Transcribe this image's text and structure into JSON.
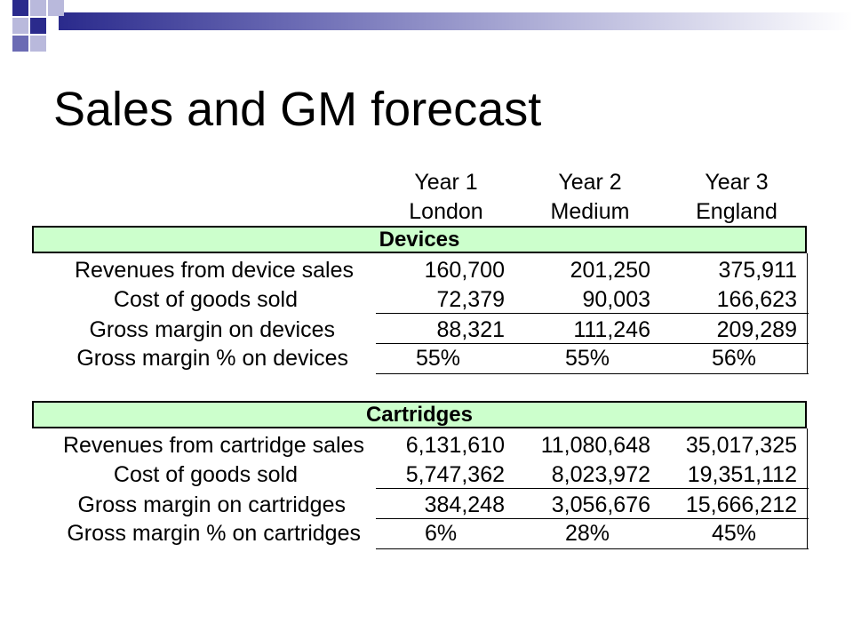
{
  "slide": {
    "title": "Sales and GM forecast"
  },
  "columns": [
    {
      "year": "Year 1",
      "scenario": "London"
    },
    {
      "year": "Year 2",
      "scenario": "Medium"
    },
    {
      "year": "Year 3",
      "scenario": "England"
    }
  ],
  "sections": [
    {
      "title": "Devices",
      "rows": [
        {
          "label": "Revenues from device sales",
          "values": [
            "160,700",
            "201,250",
            "375,911"
          ]
        },
        {
          "label": "Cost of goods sold",
          "values": [
            "72,379",
            "90,003",
            "166,623"
          ]
        },
        {
          "label": "Gross margin on devices",
          "values": [
            "88,321",
            "111,246",
            "209,289"
          ]
        },
        {
          "label": "Gross margin % on devices",
          "values": [
            "55%",
            "55%",
            "56%"
          ]
        }
      ]
    },
    {
      "title": "Cartridges",
      "rows": [
        {
          "label": "Revenues from cartridge sales",
          "values": [
            "6,131,610",
            "11,080,648",
            "35,017,325"
          ]
        },
        {
          "label": "Cost of goods sold",
          "values": [
            "5,747,362",
            "8,023,972",
            "19,351,112"
          ]
        },
        {
          "label": "Gross margin on cartridges",
          "values": [
            "384,248",
            "3,056,676",
            "15,666,212"
          ]
        },
        {
          "label": "Gross margin % on cartridges",
          "values": [
            "6%",
            "28%",
            "45%"
          ]
        }
      ]
    }
  ]
}
